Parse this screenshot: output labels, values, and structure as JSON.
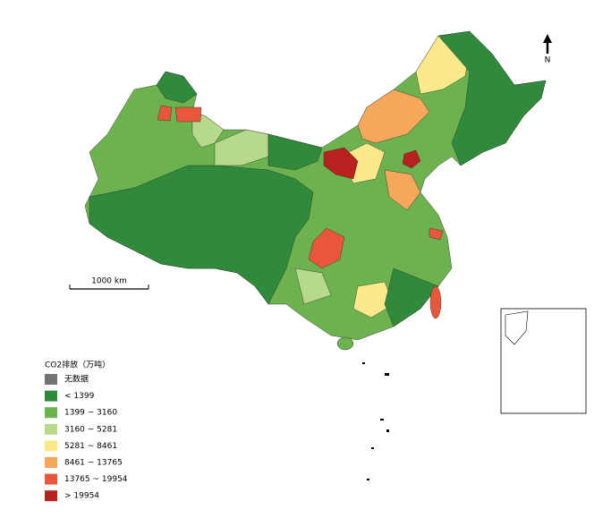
{
  "legend": {
    "title": "CO2排放（万吨）",
    "items": [
      {
        "label": "无数据",
        "color": "#737373"
      },
      {
        "label": "< 1399",
        "color": "#2f8a3b"
      },
      {
        "label": "1399 ~ 3160",
        "color": "#6cb24f"
      },
      {
        "label": "3160 ~ 5281",
        "color": "#b7d98b"
      },
      {
        "label": "5281 ~ 8461",
        "color": "#fbe88a"
      },
      {
        "label": "8461 ~ 13765",
        "color": "#f6a75c"
      },
      {
        "label": "13765 ~ 19954",
        "color": "#e8573b"
      },
      {
        "label": "> 19954",
        "color": "#b9211f"
      }
    ]
  },
  "scale_bar": {
    "label": "1000 km"
  },
  "north_arrow": {
    "label": "N"
  }
}
